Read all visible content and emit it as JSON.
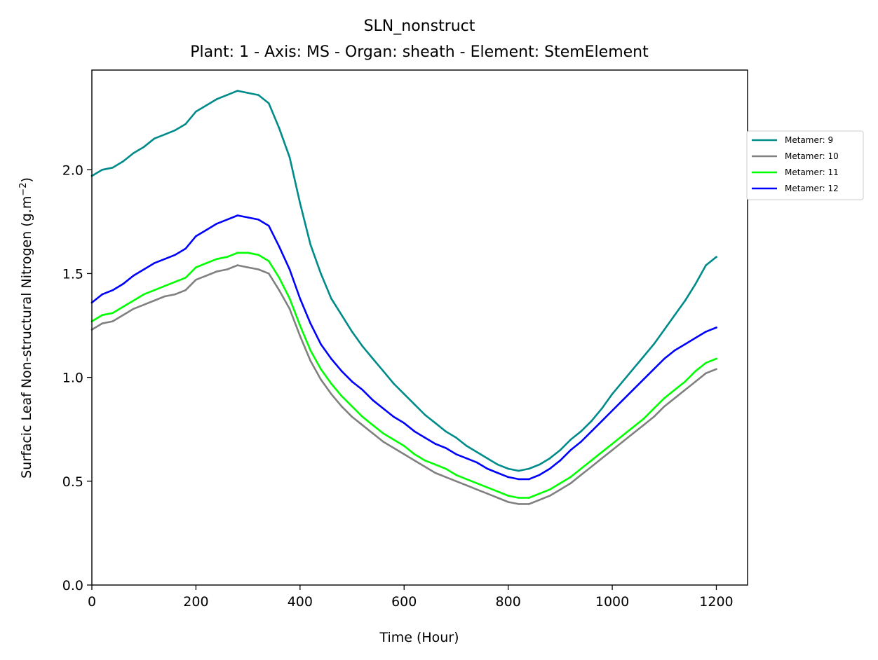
{
  "chart_data": {
    "type": "line",
    "title": "SLN_nonstruct",
    "subtitle": "Plant: 1 - Axis: MS - Organ: sheath - Element: StemElement",
    "xlabel": "Time (Hour)",
    "ylabel": "Surfacic Leaf Non-structural Nitrogen (g.m",
    "ylabel_sup": "−2",
    "ylabel_end": ")",
    "xlim": [
      0,
      1260
    ],
    "ylim": [
      0,
      2.48
    ],
    "xticks": [
      0,
      200,
      400,
      600,
      800,
      1000,
      1200
    ],
    "xtick_labels": [
      "0",
      "200",
      "400",
      "600",
      "800",
      "1000",
      "1200"
    ],
    "yticks": [
      0,
      0.5,
      1.0,
      1.5,
      2.0
    ],
    "ytick_labels": [
      "0.0",
      "0.5",
      "1.0",
      "1.5",
      "2.0"
    ],
    "legend_position": "outside-right-top",
    "series": [
      {
        "name": "Metamer: 9",
        "color": "#008b8b",
        "x": [
          0,
          20,
          40,
          60,
          80,
          100,
          120,
          140,
          160,
          180,
          200,
          220,
          240,
          260,
          280,
          300,
          320,
          340,
          360,
          380,
          400,
          420,
          440,
          460,
          480,
          500,
          520,
          540,
          560,
          580,
          600,
          620,
          640,
          660,
          680,
          700,
          720,
          740,
          760,
          780,
          800,
          820,
          840,
          860,
          880,
          900,
          920,
          940,
          960,
          980,
          1000,
          1020,
          1040,
          1060,
          1080,
          1100,
          1120,
          1140,
          1160,
          1180,
          1200
        ],
        "values": [
          1.97,
          2.0,
          2.01,
          2.04,
          2.08,
          2.11,
          2.15,
          2.17,
          2.19,
          2.22,
          2.28,
          2.31,
          2.34,
          2.36,
          2.38,
          2.37,
          2.36,
          2.32,
          2.2,
          2.06,
          1.84,
          1.64,
          1.5,
          1.38,
          1.3,
          1.22,
          1.15,
          1.09,
          1.03,
          0.97,
          0.92,
          0.87,
          0.82,
          0.78,
          0.74,
          0.71,
          0.67,
          0.64,
          0.61,
          0.58,
          0.56,
          0.55,
          0.56,
          0.58,
          0.61,
          0.65,
          0.7,
          0.74,
          0.79,
          0.85,
          0.92,
          0.98,
          1.04,
          1.1,
          1.16,
          1.23,
          1.3,
          1.37,
          1.45,
          1.54,
          1.58
        ]
      },
      {
        "name": "Metamer: 10",
        "color": "#808080",
        "x": [
          0,
          20,
          40,
          60,
          80,
          100,
          120,
          140,
          160,
          180,
          200,
          220,
          240,
          260,
          280,
          300,
          320,
          340,
          360,
          380,
          400,
          420,
          440,
          460,
          480,
          500,
          520,
          540,
          560,
          580,
          600,
          620,
          640,
          660,
          680,
          700,
          720,
          740,
          760,
          780,
          800,
          820,
          840,
          860,
          880,
          900,
          920,
          940,
          960,
          980,
          1000,
          1020,
          1040,
          1060,
          1080,
          1100,
          1120,
          1140,
          1160,
          1180,
          1200
        ],
        "values": [
          1.23,
          1.26,
          1.27,
          1.3,
          1.33,
          1.35,
          1.37,
          1.39,
          1.4,
          1.42,
          1.47,
          1.49,
          1.51,
          1.52,
          1.54,
          1.53,
          1.52,
          1.5,
          1.42,
          1.33,
          1.2,
          1.08,
          0.99,
          0.92,
          0.86,
          0.81,
          0.77,
          0.73,
          0.69,
          0.66,
          0.63,
          0.6,
          0.57,
          0.54,
          0.52,
          0.5,
          0.48,
          0.46,
          0.44,
          0.42,
          0.4,
          0.39,
          0.39,
          0.41,
          0.43,
          0.46,
          0.49,
          0.53,
          0.57,
          0.61,
          0.65,
          0.69,
          0.73,
          0.77,
          0.81,
          0.86,
          0.9,
          0.94,
          0.98,
          1.02,
          1.04
        ]
      },
      {
        "name": "Metamer: 11",
        "color": "#00ff00",
        "x": [
          0,
          20,
          40,
          60,
          80,
          100,
          120,
          140,
          160,
          180,
          200,
          220,
          240,
          260,
          280,
          300,
          320,
          340,
          360,
          380,
          400,
          420,
          440,
          460,
          480,
          500,
          520,
          540,
          560,
          580,
          600,
          620,
          640,
          660,
          680,
          700,
          720,
          740,
          760,
          780,
          800,
          820,
          840,
          860,
          880,
          900,
          920,
          940,
          960,
          980,
          1000,
          1020,
          1040,
          1060,
          1080,
          1100,
          1120,
          1140,
          1160,
          1180,
          1200
        ],
        "values": [
          1.27,
          1.3,
          1.31,
          1.34,
          1.37,
          1.4,
          1.42,
          1.44,
          1.46,
          1.48,
          1.53,
          1.55,
          1.57,
          1.58,
          1.6,
          1.6,
          1.59,
          1.56,
          1.48,
          1.38,
          1.25,
          1.13,
          1.04,
          0.97,
          0.91,
          0.86,
          0.81,
          0.77,
          0.73,
          0.7,
          0.67,
          0.63,
          0.6,
          0.58,
          0.56,
          0.53,
          0.51,
          0.49,
          0.47,
          0.45,
          0.43,
          0.42,
          0.42,
          0.44,
          0.46,
          0.49,
          0.52,
          0.56,
          0.6,
          0.64,
          0.68,
          0.72,
          0.76,
          0.8,
          0.85,
          0.9,
          0.94,
          0.98,
          1.03,
          1.07,
          1.09
        ]
      },
      {
        "name": "Metamer: 12",
        "color": "#0000ff",
        "x": [
          0,
          20,
          40,
          60,
          80,
          100,
          120,
          140,
          160,
          180,
          200,
          220,
          240,
          260,
          280,
          300,
          320,
          340,
          360,
          380,
          400,
          420,
          440,
          460,
          480,
          500,
          520,
          540,
          560,
          580,
          600,
          620,
          640,
          660,
          680,
          700,
          720,
          740,
          760,
          780,
          800,
          820,
          840,
          860,
          880,
          900,
          920,
          940,
          960,
          980,
          1000,
          1020,
          1040,
          1060,
          1080,
          1100,
          1120,
          1140,
          1160,
          1180,
          1200
        ],
        "values": [
          1.36,
          1.4,
          1.42,
          1.45,
          1.49,
          1.52,
          1.55,
          1.57,
          1.59,
          1.62,
          1.68,
          1.71,
          1.74,
          1.76,
          1.78,
          1.77,
          1.76,
          1.73,
          1.63,
          1.52,
          1.38,
          1.26,
          1.16,
          1.09,
          1.03,
          0.98,
          0.94,
          0.89,
          0.85,
          0.81,
          0.78,
          0.74,
          0.71,
          0.68,
          0.66,
          0.63,
          0.61,
          0.59,
          0.56,
          0.54,
          0.52,
          0.51,
          0.51,
          0.53,
          0.56,
          0.6,
          0.65,
          0.69,
          0.74,
          0.79,
          0.84,
          0.89,
          0.94,
          0.99,
          1.04,
          1.09,
          1.13,
          1.16,
          1.19,
          1.22,
          1.24
        ]
      }
    ]
  }
}
